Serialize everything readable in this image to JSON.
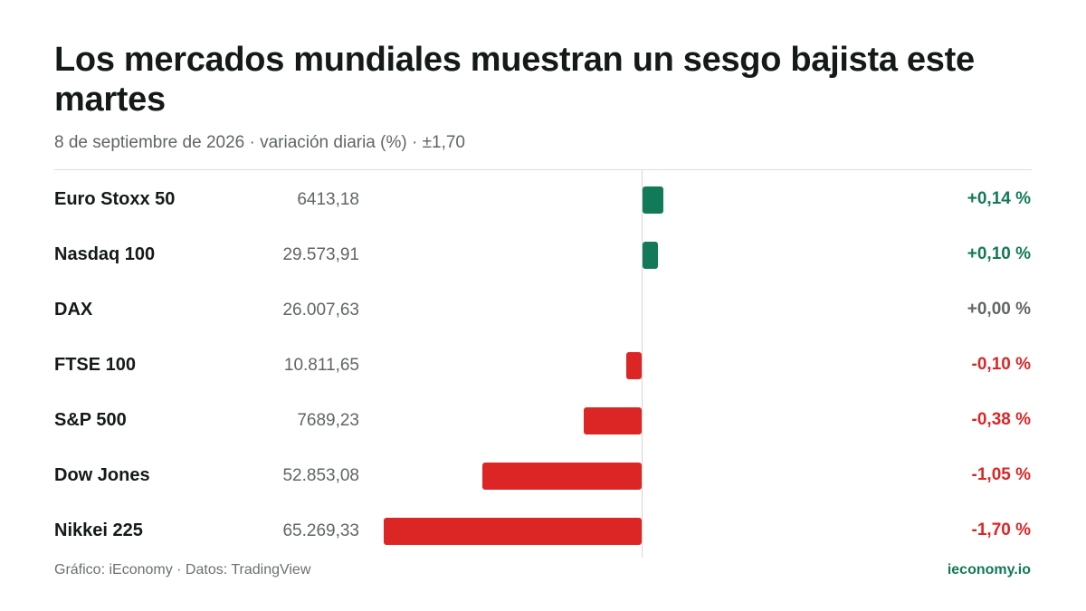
{
  "header": {
    "title": "Los mercados mundiales muestran un sesgo bajista este martes",
    "subtitle": "8 de septiembre de 2026 · variación diaria (%) · ±1,70"
  },
  "footer": {
    "source": "Gráfico: iEconomy · Datos: TradingView",
    "brand": "ieconomy.io"
  },
  "colors": {
    "positive": "#127a58",
    "negative": "#dc2626",
    "neutral": "#5f6663"
  },
  "chart_data": {
    "type": "bar",
    "orientation": "horizontal",
    "title": "Los mercados mundiales muestran un sesgo bajista este martes",
    "subtitle": "8 de septiembre de 2026 · variación diaria (%) · ±1,70",
    "xlim": [
      -1.7,
      1.7
    ],
    "grid": false,
    "rows": [
      {
        "name": "Euro Stoxx 50",
        "price": "6413,18",
        "value": 0.14,
        "label": "+0,14 %"
      },
      {
        "name": "Nasdaq 100",
        "price": "29.573,91",
        "value": 0.1,
        "label": "+0,10 %"
      },
      {
        "name": "DAX",
        "price": "26.007,63",
        "value": 0.0,
        "label": "+0,00 %"
      },
      {
        "name": "FTSE 100",
        "price": "10.811,65",
        "value": -0.1,
        "label": "-0,10 %"
      },
      {
        "name": "S&P 500",
        "price": "7689,23",
        "value": -0.38,
        "label": "-0,38 %"
      },
      {
        "name": "Dow Jones",
        "price": "52.853,08",
        "value": -1.05,
        "label": "-1,05 %"
      },
      {
        "name": "Nikkei 225",
        "price": "65.269,33",
        "value": -1.7,
        "label": "-1,70 %"
      }
    ]
  }
}
